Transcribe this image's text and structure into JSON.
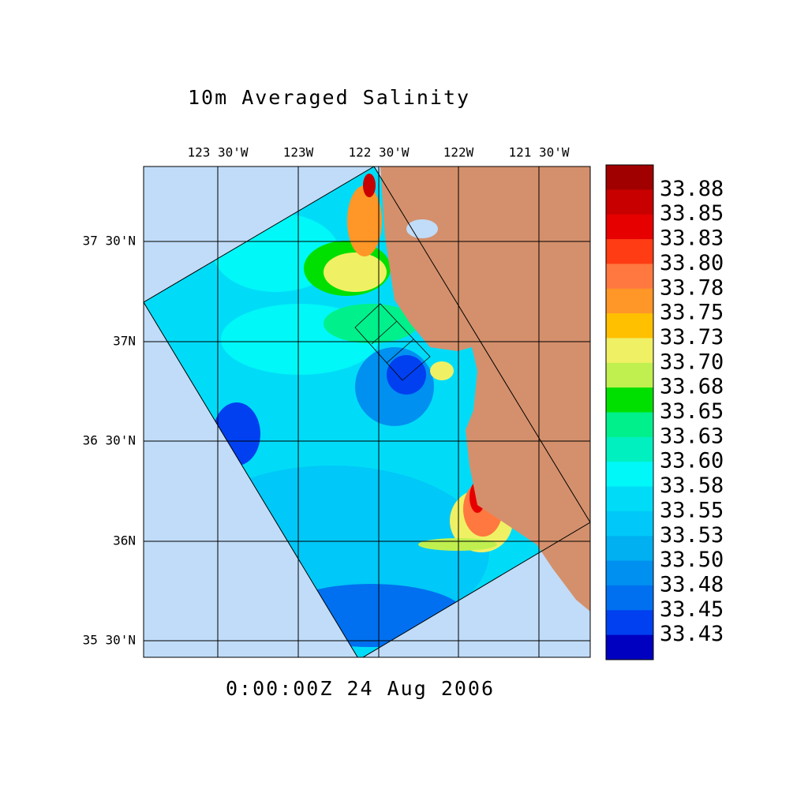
{
  "title": "10m Averaged Salinity",
  "time_label": "0:00:00Z  24 Aug 2006",
  "lon_ticks": [
    "123 30'W",
    "123W",
    "122 30'W",
    "122W",
    "121 30'W"
  ],
  "lat_ticks": [
    "37 30'N",
    "37N",
    "36 30'N",
    "36N",
    "35 30'N"
  ],
  "colorbar": {
    "labels": [
      "33.88",
      "33.85",
      "33.83",
      "33.80",
      "33.78",
      "33.75",
      "33.73",
      "33.70",
      "33.68",
      "33.65",
      "33.63",
      "33.60",
      "33.58",
      "33.55",
      "33.53",
      "33.50",
      "33.48",
      "33.45",
      "33.43"
    ],
    "colors": [
      "#a00000",
      "#c80000",
      "#e60000",
      "#ff3c14",
      "#ff7840",
      "#ff9628",
      "#ffc000",
      "#f0f064",
      "#c0f050",
      "#00e000",
      "#00f08c",
      "#00f0c0",
      "#00f8f8",
      "#00dcf8",
      "#00c8f8",
      "#00b0f0",
      "#0090f0",
      "#0070f0",
      "#0040f0",
      "#0000c0"
    ]
  }
}
